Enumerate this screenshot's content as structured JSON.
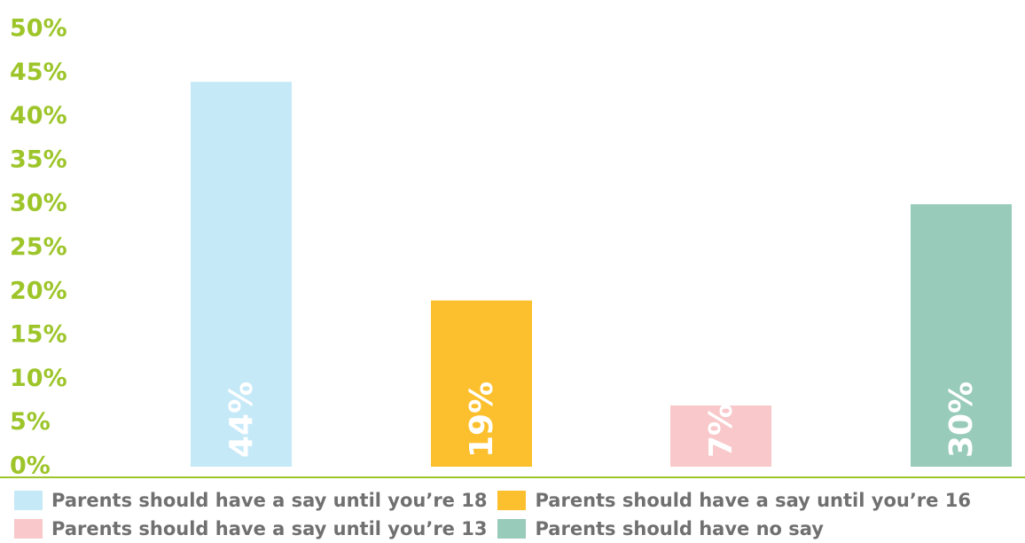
{
  "chart_data": {
    "type": "bar",
    "categories": [
      "Parents should have a say until you’re 18",
      "Parents should have a say until you’re 16",
      "Parents should have a say until you’re 13",
      "Parents should have no say"
    ],
    "values": [
      44,
      19,
      7,
      30
    ],
    "value_labels": [
      "44%",
      "19%",
      "7%",
      "30%"
    ],
    "colors": [
      "#c6e9f8",
      "#fcc02e",
      "#f8c8ca",
      "#98cbb9"
    ],
    "ylim": [
      0,
      50
    ],
    "yticks": [
      "0%",
      "5%",
      "10%",
      "15%",
      "20%",
      "25%",
      "30%",
      "35%",
      "40%",
      "45%",
      "50%"
    ],
    "ytick_values": [
      0,
      5,
      10,
      15,
      20,
      25,
      30,
      35,
      40,
      45,
      50
    ],
    "axis_color": "#9dc52a",
    "grid": false,
    "legend_position": "bottom"
  },
  "legend": {
    "items": [
      {
        "label": "Parents should have a say until you’re 18",
        "color": "#c6e9f8"
      },
      {
        "label": "Parents should have a say until you’re 16",
        "color": "#fcc02e"
      },
      {
        "label": "Parents should have a say until you’re 13",
        "color": "#f8c8ca"
      },
      {
        "label": "Parents should have no say",
        "color": "#98cbb9"
      }
    ]
  }
}
